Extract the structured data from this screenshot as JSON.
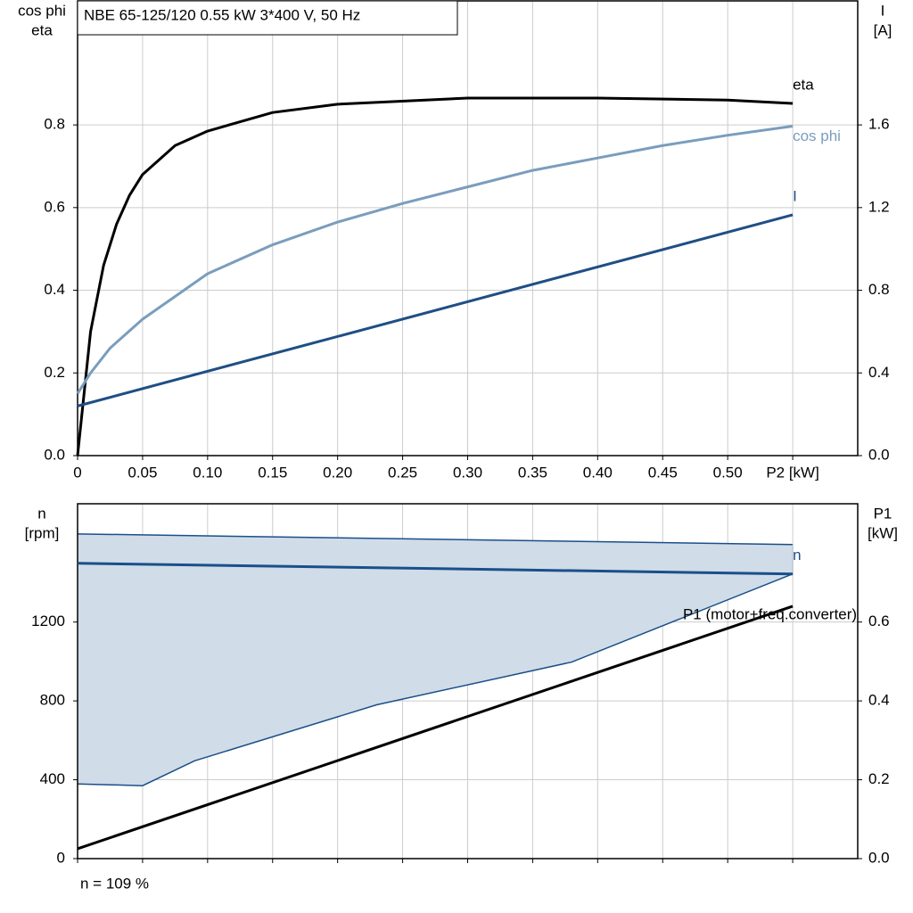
{
  "chart_data": [
    {
      "type": "line",
      "title": "NBE 65-125/120   0.55 kW   3*400 V, 50 Hz",
      "ylabel": [
        "cos phi",
        "eta"
      ],
      "y2label": [
        "I",
        "[A]"
      ],
      "xlim": [
        0,
        0.6
      ],
      "xticks": [
        0,
        0.05,
        {
          "value": 0.1,
          "label": "0.10"
        },
        0.15,
        {
          "value": 0.2,
          "label": "0.20"
        },
        0.25,
        {
          "value": 0.3,
          "label": "0.30"
        },
        0.35,
        {
          "value": 0.4,
          "label": "0.40"
        },
        0.45,
        {
          "value": 0.5,
          "label": "0.50"
        },
        {
          "value": 0.55,
          "label": "P2 [kW]"
        }
      ],
      "xtick_labels": true,
      "ylim": [
        0,
        1.1
      ],
      "yticks": [
        {
          "value": 0,
          "label": "0.0"
        },
        0.2,
        0.4,
        0.6,
        0.8
      ],
      "y2lim": [
        0,
        2.2
      ],
      "y2ticks": [
        {
          "value": 0,
          "label": "0.0"
        },
        0.4,
        0.8,
        1.2,
        1.6
      ],
      "grid": true,
      "series": [
        {
          "name": "eta",
          "color": "#000000",
          "axis": "y",
          "x": [
            0,
            0.01,
            0.02,
            0.03,
            0.04,
            0.05,
            0.075,
            0.1,
            0.15,
            0.2,
            0.3,
            0.4,
            0.5,
            0.55
          ],
          "values": [
            0,
            0.3,
            0.46,
            0.56,
            0.63,
            0.68,
            0.75,
            0.785,
            0.83,
            0.85,
            0.865,
            0.865,
            0.86,
            0.852
          ]
        },
        {
          "name": "cos phi",
          "color": "#7a9dbd",
          "axis": "y",
          "x": [
            0,
            0.01,
            0.025,
            0.05,
            0.1,
            0.15,
            0.2,
            0.25,
            0.3,
            0.35,
            0.4,
            0.45,
            0.5,
            0.55
          ],
          "values": [
            0.15,
            0.2,
            0.26,
            0.33,
            0.44,
            0.51,
            0.565,
            0.61,
            0.65,
            0.69,
            0.72,
            0.75,
            0.775,
            0.797
          ]
        },
        {
          "name": "I",
          "color": "#1f4e85",
          "axis": "y2",
          "x": [
            0,
            0.55
          ],
          "values": [
            0.24,
            1.165
          ]
        }
      ]
    },
    {
      "type": "line",
      "ylabel": [
        "n",
        "[rpm]"
      ],
      "y2label": [
        "P1",
        "[kW]"
      ],
      "note": "n = 109 %",
      "xlim": [
        0,
        0.6
      ],
      "xticks": [
        0,
        0.05,
        0.1,
        0.15,
        0.2,
        0.25,
        0.3,
        0.35,
        0.4,
        0.45,
        0.5,
        0.55
      ],
      "xtick_labels": false,
      "ylim": [
        0,
        1800
      ],
      "yticks": [
        0,
        400,
        800,
        1200
      ],
      "y2lim": [
        0,
        0.9
      ],
      "y2ticks": [
        {
          "value": 0,
          "label": "0.0"
        },
        0.2,
        0.4,
        0.6
      ],
      "grid": true,
      "band": {
        "color": "#d0dce8",
        "edge": "#1a4f8a",
        "x_upper": [
          0,
          0.55
        ],
        "upper": [
          1647,
          1593
        ],
        "x_lower": [
          0,
          0.05,
          0.09,
          0.23,
          0.38,
          0.55
        ],
        "lower": [
          379,
          370,
          496,
          780,
          997,
          1444
        ]
      },
      "series": [
        {
          "name": "n",
          "color": "#1a4f8a",
          "axis": "y",
          "x": [
            0,
            0.55
          ],
          "values": [
            1498,
            1444
          ]
        },
        {
          "name": "P1 (motor+freq.converter)",
          "color": "#000000",
          "axis": "y2",
          "x": [
            0,
            0.55
          ],
          "values": [
            0.025,
            0.64
          ]
        }
      ]
    }
  ]
}
